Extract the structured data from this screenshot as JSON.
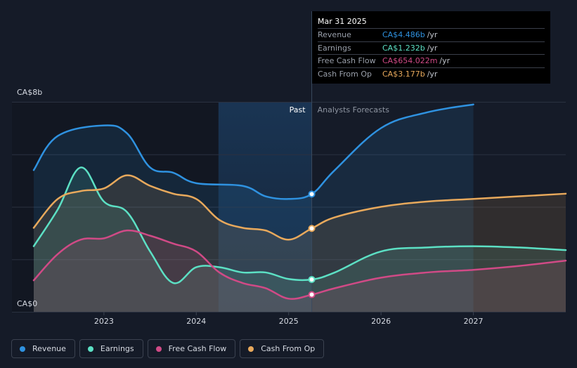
{
  "chart_data": {
    "type": "line",
    "y_axis": {
      "top_label": "CA$8b",
      "bottom_label": "CA$0",
      "ylim": [
        0,
        8
      ]
    },
    "x_axis": {
      "ticks": [
        "2023",
        "2024",
        "2025",
        "2026",
        "2027"
      ],
      "tick_values": [
        2023,
        2024,
        2025,
        2026,
        2027
      ],
      "xlim": [
        2022.24,
        2028.0
      ]
    },
    "regions": {
      "past_label": "Past",
      "forecast_label": "Analysts Forecasts",
      "divider_x": 2025.25,
      "highlight_start": 2024.24
    },
    "series": [
      {
        "name": "Revenue",
        "color": "#2f92e0",
        "fill": true,
        "x": [
          2022.24,
          2022.5,
          2023.0,
          2023.25,
          2023.5,
          2023.75,
          2024.0,
          2024.5,
          2024.75,
          2025.0,
          2025.25,
          2025.5,
          2026.0,
          2026.5,
          2027.0
        ],
        "y": [
          5.4,
          6.7,
          7.1,
          6.8,
          5.5,
          5.3,
          4.9,
          4.8,
          4.4,
          4.3,
          4.486,
          5.4,
          7.0,
          7.6,
          7.9
        ]
      },
      {
        "name": "Earnings",
        "color": "#5ce0c4",
        "fill": true,
        "x": [
          2022.24,
          2022.5,
          2022.75,
          2023.0,
          2023.25,
          2023.5,
          2023.75,
          2024.0,
          2024.25,
          2024.5,
          2024.75,
          2025.0,
          2025.25,
          2025.5,
          2026.0,
          2026.5,
          2027.0,
          2027.5,
          2028.0
        ],
        "y": [
          2.5,
          3.9,
          5.5,
          4.2,
          3.8,
          2.3,
          1.1,
          1.7,
          1.7,
          1.5,
          1.5,
          1.25,
          1.232,
          1.5,
          2.3,
          2.45,
          2.5,
          2.45,
          2.35
        ]
      },
      {
        "name": "Free Cash Flow",
        "color": "#d04a86",
        "fill": true,
        "x": [
          2022.24,
          2022.5,
          2022.75,
          2023.0,
          2023.25,
          2023.5,
          2023.75,
          2024.0,
          2024.25,
          2024.5,
          2024.75,
          2025.0,
          2025.25,
          2025.5,
          2026.0,
          2026.5,
          2027.0,
          2027.5,
          2028.0
        ],
        "y": [
          1.2,
          2.2,
          2.75,
          2.8,
          3.1,
          2.9,
          2.6,
          2.3,
          1.5,
          1.1,
          0.9,
          0.5,
          0.654,
          0.9,
          1.3,
          1.5,
          1.6,
          1.75,
          1.95
        ]
      },
      {
        "name": "Cash From Op",
        "color": "#e8a95c",
        "fill": true,
        "x": [
          2022.24,
          2022.5,
          2022.75,
          2023.0,
          2023.25,
          2023.5,
          2023.75,
          2024.0,
          2024.25,
          2024.5,
          2024.75,
          2025.0,
          2025.25,
          2025.5,
          2026.0,
          2026.5,
          2027.0,
          2027.5,
          2028.0
        ],
        "y": [
          3.2,
          4.3,
          4.6,
          4.7,
          5.2,
          4.8,
          4.5,
          4.3,
          3.5,
          3.2,
          3.1,
          2.75,
          3.177,
          3.6,
          4.0,
          4.2,
          4.3,
          4.4,
          4.5
        ]
      }
    ],
    "highlight_points": [
      {
        "series": "Revenue",
        "x": 2025.25,
        "y": 4.486
      },
      {
        "series": "Earnings",
        "x": 2025.25,
        "y": 1.232
      },
      {
        "series": "Free Cash Flow",
        "x": 2025.25,
        "y": 0.654
      },
      {
        "series": "Cash From Op",
        "x": 2025.25,
        "y": 3.177
      }
    ]
  },
  "tooltip": {
    "date": "Mar 31 2025",
    "rows": [
      {
        "label": "Revenue",
        "value": "CA$4.486b",
        "unit": "/yr",
        "color": "#2f92e0"
      },
      {
        "label": "Earnings",
        "value": "CA$1.232b",
        "unit": "/yr",
        "color": "#5ce0c4"
      },
      {
        "label": "Free Cash Flow",
        "value": "CA$654.022m",
        "unit": "/yr",
        "color": "#d04a86"
      },
      {
        "label": "Cash From Op",
        "value": "CA$3.177b",
        "unit": "/yr",
        "color": "#e8a95c"
      }
    ]
  },
  "legend": [
    {
      "label": "Revenue",
      "color": "#2f92e0"
    },
    {
      "label": "Earnings",
      "color": "#5ce0c4"
    },
    {
      "label": "Free Cash Flow",
      "color": "#d04a86"
    },
    {
      "label": "Cash From Op",
      "color": "#e8a95c"
    }
  ]
}
